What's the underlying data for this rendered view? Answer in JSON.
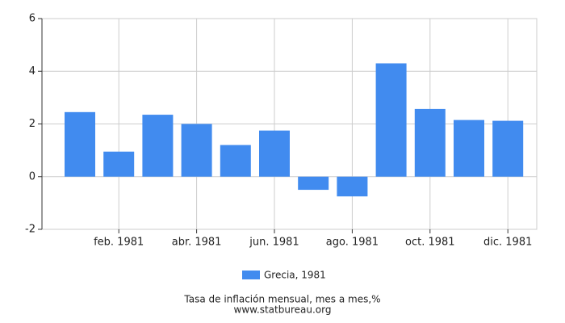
{
  "chart_data": {
    "type": "bar",
    "categories": [
      null,
      "feb. 1981",
      null,
      "abr. 1981",
      null,
      "jun. 1981",
      null,
      "ago. 1981",
      null,
      "oct. 1981",
      null,
      "dic. 1981"
    ],
    "series": [
      {
        "name": "Grecia, 1981",
        "color": "#418bef",
        "values": [
          2.45,
          0.95,
          2.35,
          2.0,
          1.2,
          1.75,
          -0.5,
          -0.75,
          4.3,
          2.57,
          2.15,
          2.12
        ]
      }
    ],
    "ylim": [
      -2,
      6
    ],
    "yticks": [
      -2,
      0,
      2,
      4,
      6
    ],
    "grid": true,
    "xlabel": "Tasa de inflación mensual, mes a mes,%",
    "source": "www.statbureau.org"
  }
}
